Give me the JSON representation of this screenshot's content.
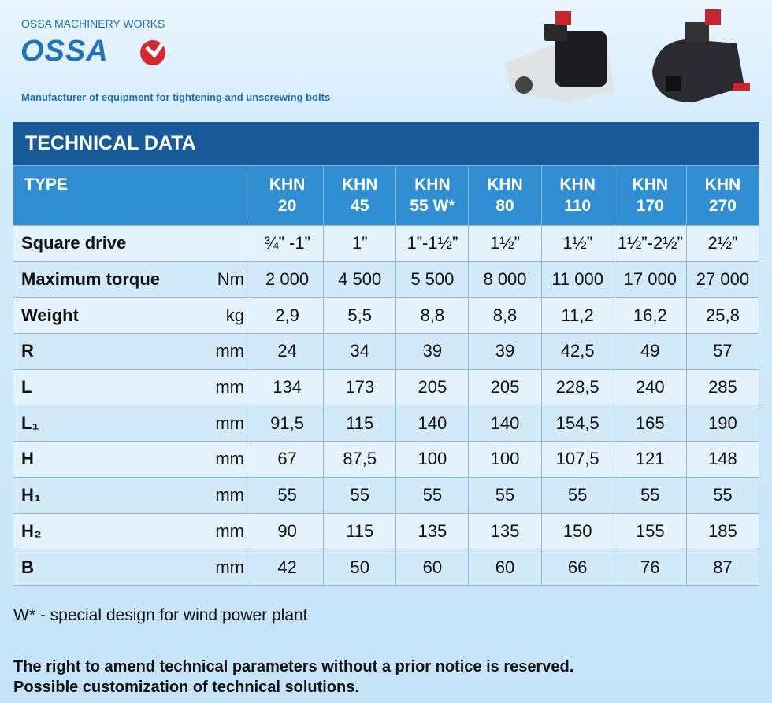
{
  "header": {
    "company": "OSSA MACHINERY WORKS",
    "logo": "OSSA",
    "tagline": "Manufacturer of equipment for tightening and unscrewing bolts"
  },
  "table": {
    "title": "TECHNICAL DATA",
    "columns": [
      "TYPE",
      "KHN\n20",
      "KHN\n45",
      "KHN\n55 W*",
      "KHN\n80",
      "KHN\n110",
      "KHN\n170",
      "KHN\n270"
    ],
    "rows": [
      {
        "label": "Square drive",
        "values": [
          "¾” -1”",
          "1”",
          "1”-1½”",
          "1½”",
          "1½”",
          "1½”-2½”",
          "2½”"
        ]
      },
      {
        "label": "Maximum torque",
        "unit": "Nm",
        "values": [
          "2 000",
          "4 500",
          "5 500",
          "8 000",
          "11 000",
          "17 000",
          "27 000"
        ]
      },
      {
        "label": "Weight",
        "unit": "kg",
        "values": [
          "2,9",
          "5,5",
          "8,8",
          "8,8",
          "11,2",
          "16,2",
          "25,8"
        ]
      },
      {
        "label": "R",
        "unit": "mm",
        "values": [
          "24",
          "34",
          "39",
          "39",
          "42,5",
          "49",
          "57"
        ]
      },
      {
        "label": "L",
        "unit": "mm",
        "values": [
          "134",
          "173",
          "205",
          "205",
          "228,5",
          "240",
          "285"
        ]
      },
      {
        "label": "L₁",
        "unit": "mm",
        "values": [
          "91,5",
          "115",
          "140",
          "140",
          "154,5",
          "165",
          "190"
        ]
      },
      {
        "label": "H",
        "unit": "mm",
        "values": [
          "67",
          "87,5",
          "100",
          "100",
          "107,5",
          "121",
          "148"
        ]
      },
      {
        "label": "H₁",
        "unit": "mm",
        "values": [
          "55",
          "55",
          "55",
          "55",
          "55",
          "55",
          "55"
        ]
      },
      {
        "label": "H₂",
        "unit": "mm",
        "values": [
          "90",
          "115",
          "135",
          "135",
          "150",
          "155",
          "185"
        ]
      },
      {
        "label": "B",
        "unit": "mm",
        "values": [
          "42",
          "50",
          "60",
          "60",
          "66",
          "76",
          "87"
        ]
      }
    ]
  },
  "footnote": "W* - special design for wind power plant",
  "notice": [
    "The right to amend technical parameters without a prior notice is reserved.",
    "Possible customization of technical solutions."
  ]
}
